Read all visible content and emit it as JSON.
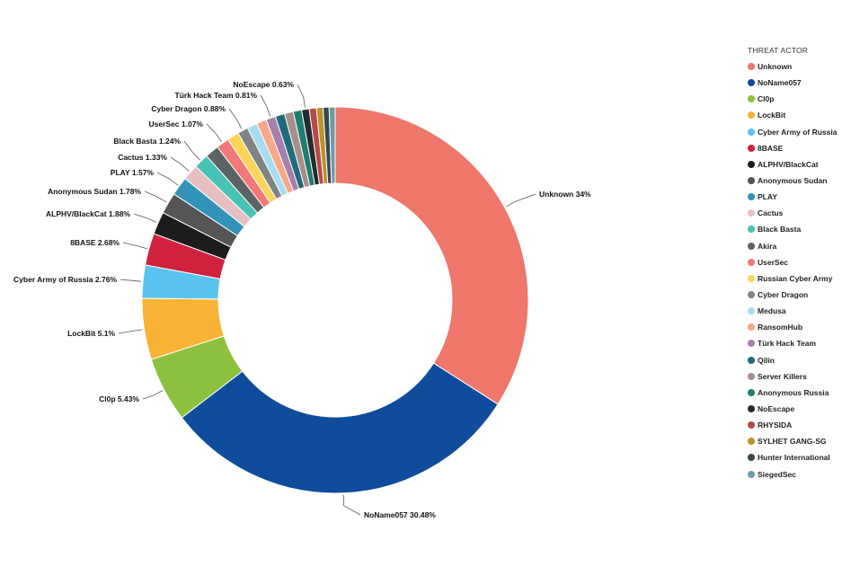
{
  "chart_data": {
    "type": "pie",
    "donut": true,
    "legend_title": "THREAT ACTOR",
    "legend_position": "right",
    "slices": [
      {
        "label": "Unknown",
        "value": 34,
        "callout": "Unknown 34%",
        "color": "#EE766B"
      },
      {
        "label": "NoName057",
        "value": 30.48,
        "callout": "NoName057 30.48%",
        "color": "#0F4C9C"
      },
      {
        "label": "Cl0p",
        "value": 5.43,
        "callout": "Cl0p 5.43%",
        "color": "#8DC03F"
      },
      {
        "label": "LockBit",
        "value": 5.1,
        "callout": "LockBit 5.1%",
        "color": "#F8B334"
      },
      {
        "label": "Cyber Army of Russia",
        "value": 2.76,
        "callout": "Cyber Army of Russia 2.76%",
        "color": "#5BC3EF"
      },
      {
        "label": "8BASE",
        "value": 2.68,
        "callout": "8BASE 2.68%",
        "color": "#D0213F"
      },
      {
        "label": "ALPHV/BlackCat",
        "value": 1.88,
        "callout": "ALPHV/BlackCat 1.88%",
        "color": "#1C1C1C"
      },
      {
        "label": "Anonymous Sudan",
        "value": 1.78,
        "callout": "Anonymous Sudan 1.78%",
        "color": "#555555"
      },
      {
        "label": "PLAY",
        "value": 1.57,
        "callout": "PLAY 1.57%",
        "color": "#3293B8"
      },
      {
        "label": "Cactus",
        "value": 1.33,
        "callout": "Cactus 1.33%",
        "color": "#E6BFC1"
      },
      {
        "label": "Black Basta",
        "value": 1.24,
        "callout": "Black Basta 1.24%",
        "color": "#48C2B5"
      },
      {
        "label": "Akira",
        "value": 1.15,
        "callout": "",
        "color": "#5C6366"
      },
      {
        "label": "UserSec",
        "value": 1.07,
        "callout": "UserSec 1.07%",
        "color": "#F07878"
      },
      {
        "label": "Russian Cyber Army",
        "value": 0.98,
        "callout": "",
        "color": "#FBD55A"
      },
      {
        "label": "Cyber Dragon",
        "value": 0.88,
        "callout": "Cyber Dragon 0.88%",
        "color": "#7F8585"
      },
      {
        "label": "Medusa",
        "value": 0.85,
        "callout": "",
        "color": "#A8DCEF"
      },
      {
        "label": "RansomHub",
        "value": 0.83,
        "callout": "",
        "color": "#F7A886"
      },
      {
        "label": "Türk Hack Team",
        "value": 0.81,
        "callout": "Türk Hack Team 0.81%",
        "color": "#A67FAB"
      },
      {
        "label": "Qilin",
        "value": 0.78,
        "callout": "",
        "color": "#1F6B78"
      },
      {
        "label": "Server Killers",
        "value": 0.74,
        "callout": "",
        "color": "#A88E89"
      },
      {
        "label": "Anonymous Russia",
        "value": 0.7,
        "callout": "",
        "color": "#1E7E74"
      },
      {
        "label": "NoEscape",
        "value": 0.63,
        "callout": "NoEscape 0.63%",
        "color": "#222B2E"
      },
      {
        "label": "RHYSIDA",
        "value": 0.6,
        "callout": "",
        "color": "#B64A48"
      },
      {
        "label": "SYLHET GANG-SG",
        "value": 0.55,
        "callout": "",
        "color": "#B8942C"
      },
      {
        "label": "Hunter International",
        "value": 0.5,
        "callout": "",
        "color": "#37464D"
      },
      {
        "label": "SiegedSec",
        "value": 0.5,
        "callout": "",
        "color": "#6A9BA6"
      }
    ]
  }
}
